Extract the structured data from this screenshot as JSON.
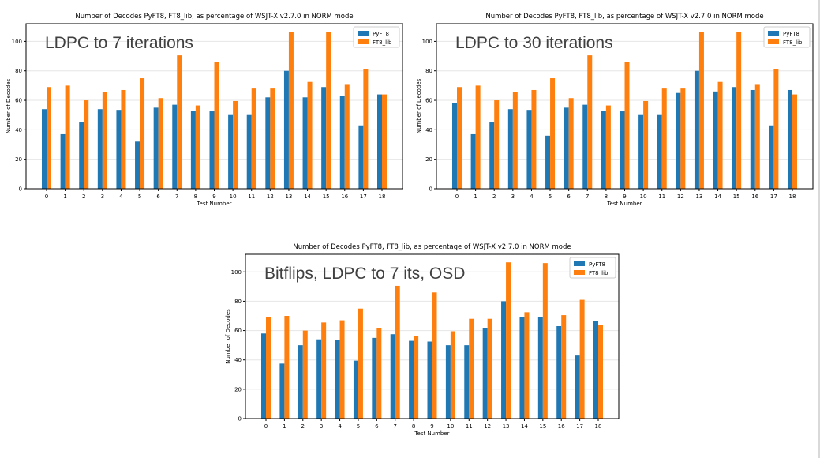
{
  "colors": {
    "pyft8": "#1f77b4",
    "ft8_lib": "#ff7f0e",
    "axis": "#000000",
    "grid": "#e6e6e6",
    "overlay_text": "#404040"
  },
  "chart_data": [
    {
      "type": "bar",
      "title": "Number of Decodes PyFT8, FT8_lib, as percentage of WSJT-X v2.7.0 in NORM mode",
      "annotation": "LDPC to 7 iterations",
      "xlabel": "Test Number",
      "ylabel": "Number of Decodes",
      "ylim": [
        0,
        112
      ],
      "yticks": [
        0,
        20,
        40,
        60,
        80,
        100
      ],
      "grid": true,
      "legend": "top-right",
      "categories": [
        "0",
        "1",
        "2",
        "3",
        "4",
        "5",
        "6",
        "7",
        "8",
        "9",
        "10",
        "11",
        "12",
        "13",
        "14",
        "15",
        "16",
        "17",
        "18"
      ],
      "series": [
        {
          "name": "PyFT8",
          "values": [
            54,
            37,
            45,
            54,
            53.5,
            32,
            55,
            57,
            53,
            52.5,
            50,
            50,
            62,
            80,
            62,
            69,
            63,
            43,
            64
          ]
        },
        {
          "name": "FT8_lib",
          "values": [
            69,
            70,
            60,
            65.5,
            67,
            75,
            61.5,
            90.5,
            56.5,
            86,
            59.5,
            68,
            68,
            106.5,
            72.5,
            106.5,
            70.5,
            81,
            64
          ]
        }
      ]
    },
    {
      "type": "bar",
      "title": "Number of Decodes PyFT8, FT8_lib, as percentage of WSJT-X v2.7.0 in NORM mode",
      "annotation": "LDPC to 30 iterations",
      "xlabel": "Test Number",
      "ylabel": "Number of Decodes",
      "ylim": [
        0,
        112
      ],
      "yticks": [
        0,
        20,
        40,
        60,
        80,
        100
      ],
      "grid": true,
      "legend": "top-right",
      "categories": [
        "0",
        "1",
        "2",
        "3",
        "4",
        "5",
        "6",
        "7",
        "8",
        "9",
        "10",
        "11",
        "12",
        "13",
        "14",
        "15",
        "16",
        "17",
        "18"
      ],
      "series": [
        {
          "name": "PyFT8",
          "values": [
            58,
            37,
            45,
            54,
            53.5,
            36,
            55,
            57,
            53,
            52.5,
            50,
            50,
            65,
            80,
            66,
            69,
            67,
            43,
            67
          ]
        },
        {
          "name": "FT8_lib",
          "values": [
            69,
            70,
            60,
            65.5,
            67,
            75,
            61.5,
            90.5,
            56.5,
            86,
            59.5,
            68,
            68,
            106.5,
            72.5,
            106.5,
            70.5,
            81,
            64
          ]
        }
      ]
    },
    {
      "type": "bar",
      "title": "Number of Decodes PyFT8, FT8_lib, as percentage of WSJT-X v2.7.0 in NORM mode",
      "annotation": "Bitflips, LDPC to 7 its, OSD",
      "xlabel": "Test Number",
      "ylabel": "Number of Decodes",
      "ylim": [
        0,
        112
      ],
      "yticks": [
        0,
        20,
        40,
        60,
        80,
        100
      ],
      "grid": true,
      "legend": "top-right",
      "categories": [
        "0",
        "1",
        "2",
        "3",
        "4",
        "5",
        "6",
        "7",
        "8",
        "9",
        "10",
        "11",
        "12",
        "13",
        "14",
        "15",
        "16",
        "17",
        "18"
      ],
      "series": [
        {
          "name": "PyFT8",
          "values": [
            58,
            37.5,
            50,
            54,
            53.5,
            39.5,
            55,
            57.5,
            53,
            52.5,
            50,
            50,
            61.5,
            80,
            69,
            69,
            63,
            43,
            66.5
          ]
        },
        {
          "name": "FT8_lib",
          "values": [
            69,
            70,
            60,
            65.5,
            67,
            75,
            61.5,
            90.5,
            56.5,
            86,
            59.5,
            68,
            68,
            106.5,
            72.5,
            106,
            70.5,
            81,
            64
          ]
        }
      ]
    }
  ]
}
